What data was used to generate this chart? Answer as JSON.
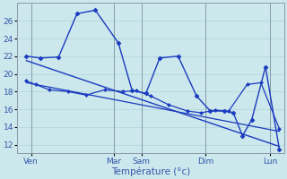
{
  "background_color": "#cce8ec",
  "grid_color": "#b0d4d8",
  "line_color": "#1a3abf",
  "tick_label_color": "#3355aa",
  "xlabel": "Température (°c)",
  "xlabel_color": "#3355aa",
  "yticks": [
    12,
    14,
    16,
    18,
    20,
    22,
    24,
    26
  ],
  "ylim": [
    11.0,
    28.0
  ],
  "xlim": [
    -0.5,
    28.5
  ],
  "x_day_ticks": [
    1,
    10,
    13,
    20,
    27
  ],
  "x_day_labels": [
    "Ven",
    "Mar",
    "Sam",
    "Dim",
    "Lun"
  ],
  "x_day_vlines": [
    1,
    10,
    13,
    20,
    27
  ],
  "series": [
    {
      "x": [
        0.5,
        2,
        4,
        6,
        8,
        10.5,
        12,
        13.5,
        15,
        17,
        19,
        20.5,
        22,
        23,
        24,
        25,
        26.5,
        28
      ],
      "y": [
        22,
        21.8,
        21.9,
        26.8,
        27.2,
        23.5,
        18.1,
        17.8,
        21.8,
        22,
        17.5,
        15.8,
        15.8,
        15.6,
        13.0,
        14.8,
        20.8,
        11.5
      ],
      "marker": "D",
      "markersize": 2.5,
      "linewidth": 1.0
    },
    {
      "x": [
        0.5,
        1.5,
        3,
        5,
        7,
        9,
        11,
        12.5,
        14,
        16,
        18,
        19.5,
        21,
        22.5,
        24.5,
        26,
        28
      ],
      "y": [
        19.2,
        18.8,
        18.2,
        18.0,
        17.6,
        18.2,
        18.0,
        18.1,
        17.5,
        16.5,
        15.8,
        15.6,
        15.9,
        15.8,
        18.8,
        19.0,
        13.8
      ],
      "marker": "D",
      "markersize": 2.0,
      "linewidth": 0.9
    },
    {
      "x": [
        0.5,
        28
      ],
      "y": [
        21.5,
        11.8
      ],
      "marker": null,
      "markersize": 0,
      "linewidth": 1.0
    },
    {
      "x": [
        0.5,
        28
      ],
      "y": [
        19.0,
        13.5
      ],
      "marker": null,
      "markersize": 0,
      "linewidth": 0.9
    }
  ]
}
